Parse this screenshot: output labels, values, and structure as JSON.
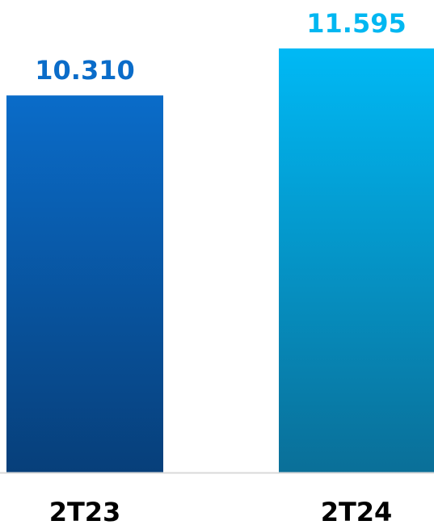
{
  "chart_data": {
    "type": "bar",
    "categories": [
      "2T23",
      "2T24"
    ],
    "values": [
      10310,
      11595
    ],
    "value_labels": [
      "10.310",
      "11.595"
    ],
    "ylim": [
      0,
      12000
    ],
    "grid": false,
    "legend": "none",
    "title": "",
    "xlabel": "",
    "ylabel": ""
  },
  "colors": {
    "bar_1_top": "#0a6cc9",
    "bar_1_bottom": "#073f7a",
    "bar_2_top": "#00b9f5",
    "bar_2_bottom": "#0a6f98",
    "label_1": "#0a6cc9",
    "label_2": "#00b7f1",
    "axis": "#d9d9d9",
    "category_text": "#000000"
  }
}
